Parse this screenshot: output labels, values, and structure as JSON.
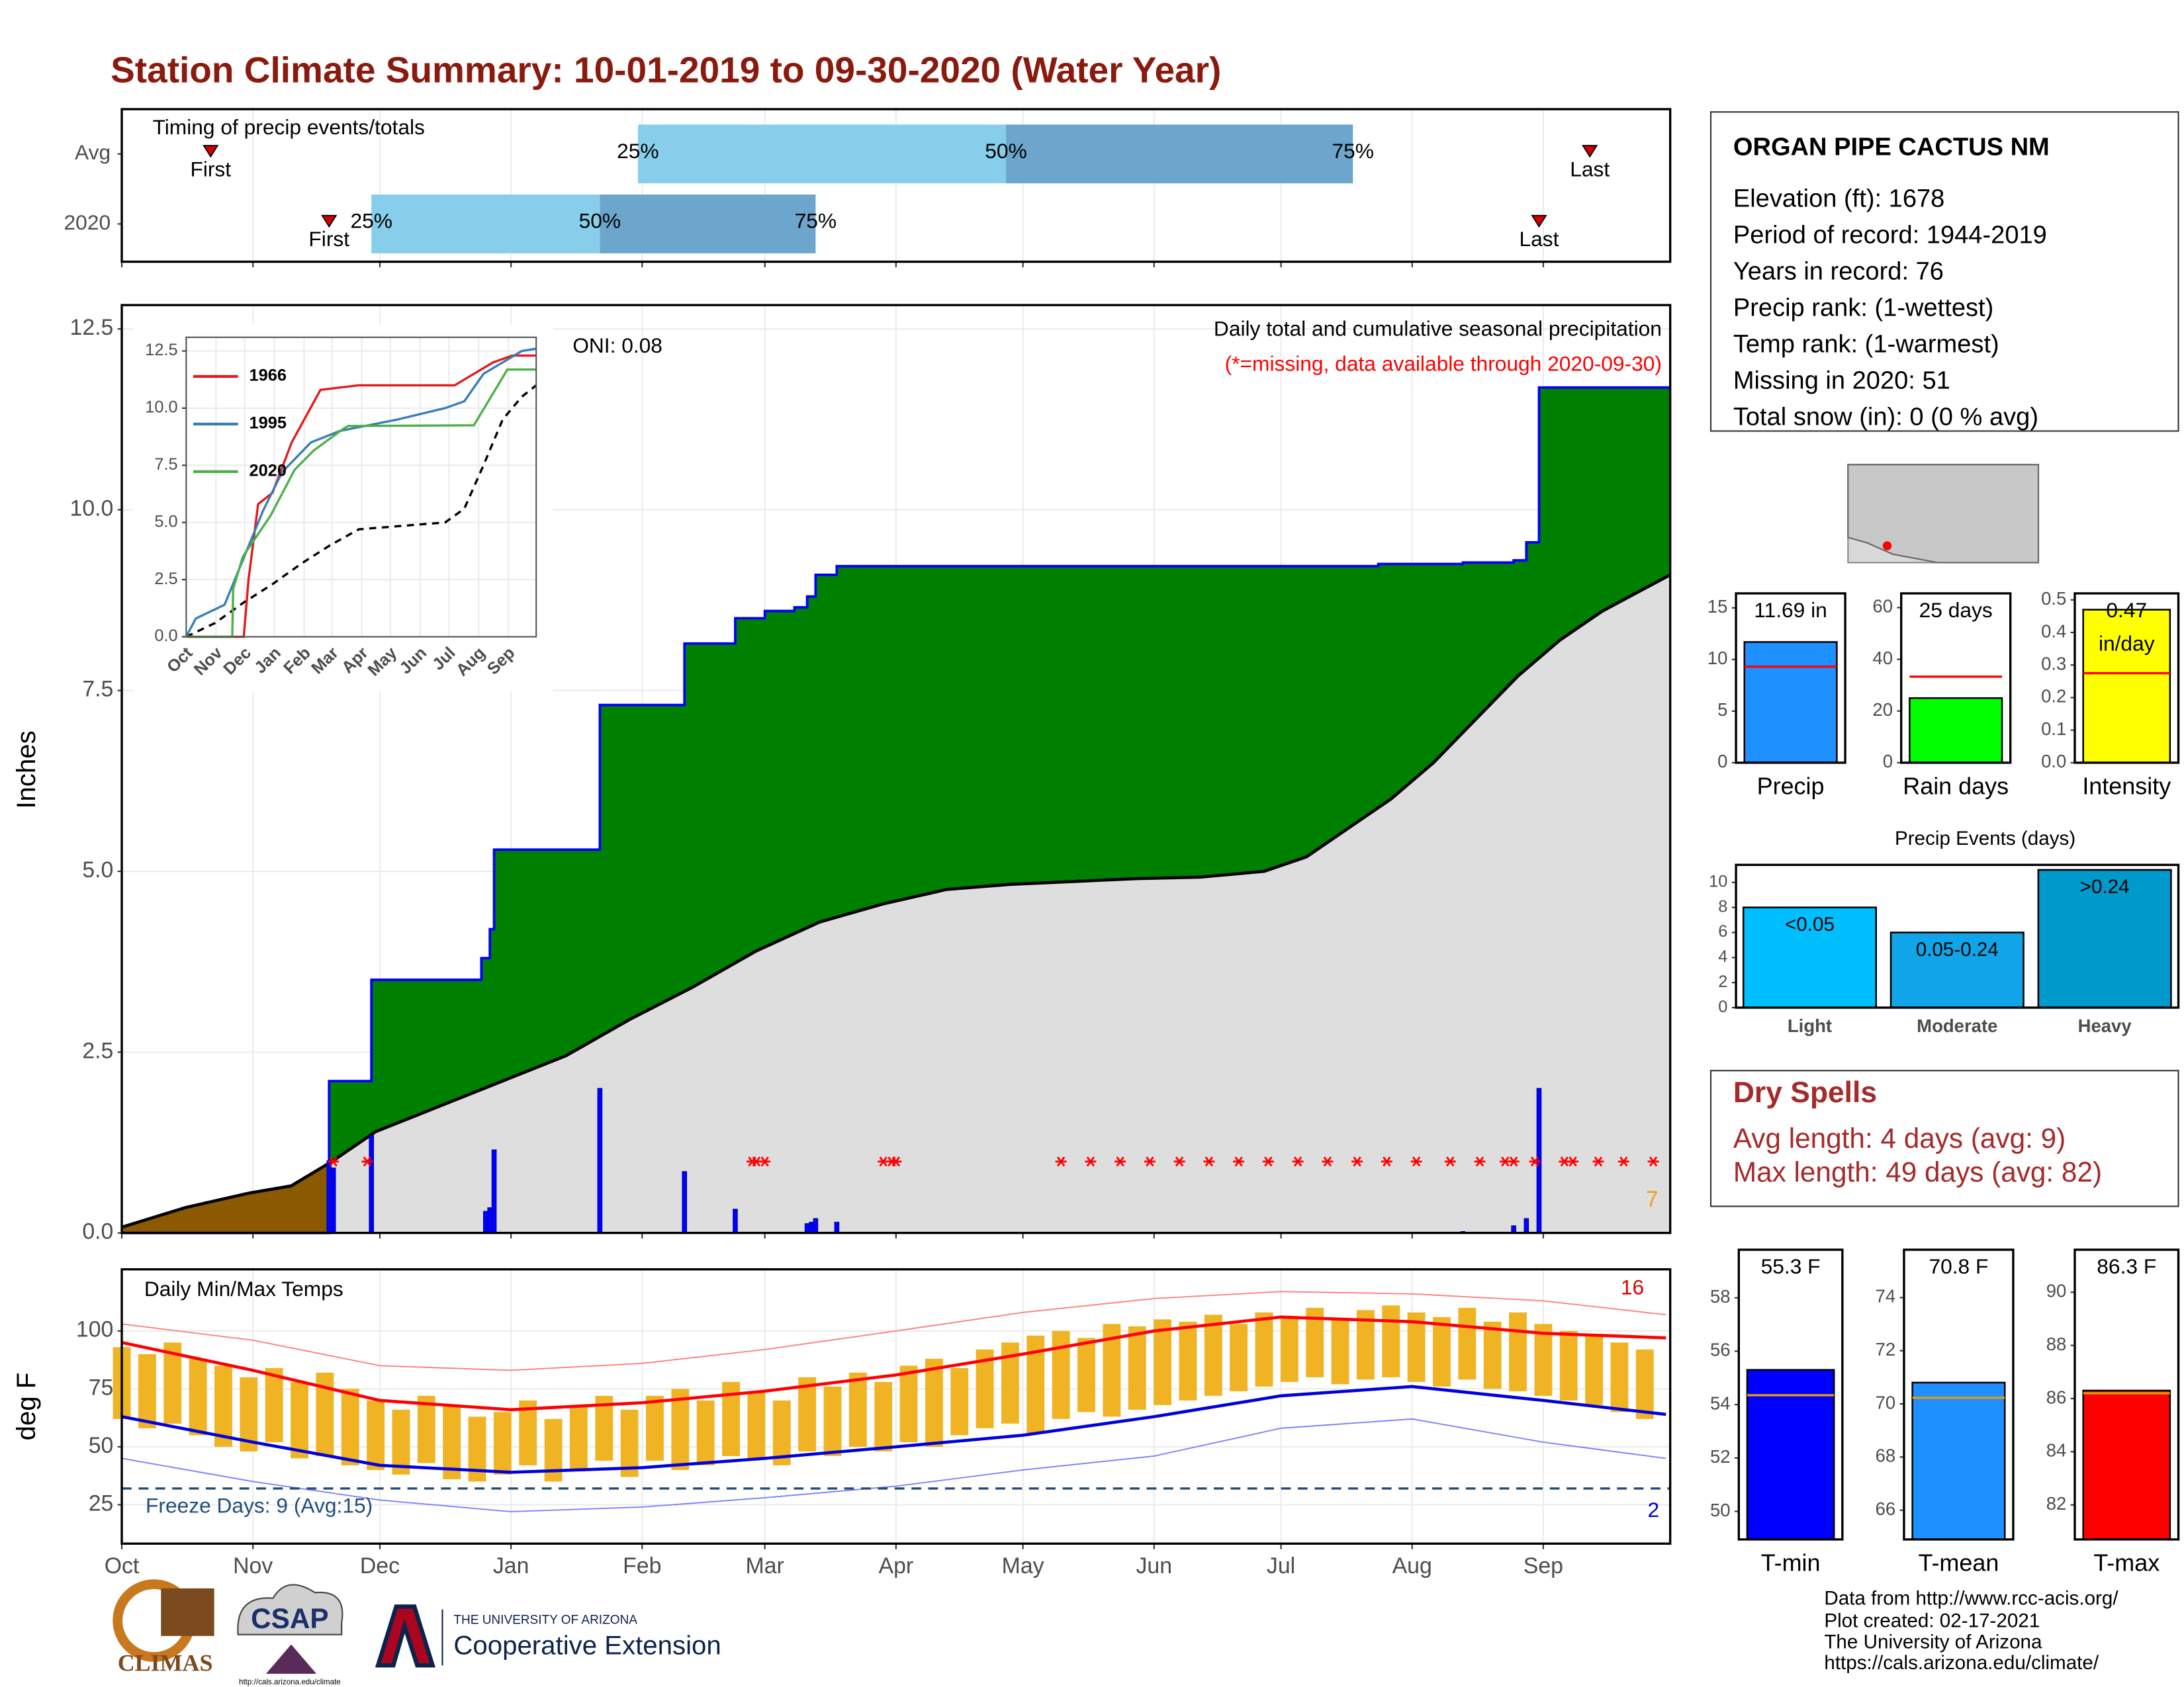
{
  "title": "Station Climate Summary: 10-01-2019 to 09-30-2020 (Water Year)",
  "station": {
    "name": "ORGAN PIPE CACTUS NM",
    "lines": [
      "Elevation (ft): 1678",
      "Period of record: 1944-2019",
      "Years in record: 76",
      "Precip rank:  (1-wettest)",
      "Temp rank:  (1-warmest)",
      "Missing in 2020: 51",
      "Total snow (in): 0 (0 % avg)"
    ]
  },
  "dry_spells": {
    "title": "Dry Spells",
    "lines": [
      "Avg length: 4 days (avg: 9)",
      "Max length: 49 days (avg: 82)"
    ]
  },
  "footer": [
    "Data from http://www.rcc-acis.org/",
    "Plot created: 02-17-2021",
    "The University of Arizona",
    "https://cals.arizona.edu/climate/"
  ],
  "logos": {
    "climas": "CLIMAS",
    "csap": "CSAP",
    "csap_url": "http://cals.arizona.edu/climate",
    "ua": "THE UNIVERSITY OF ARIZONA",
    "extension": "Cooperative Extension"
  },
  "chart_data": [
    {
      "type": "timing",
      "label": "Timing of precip events/totals",
      "xlim": [
        0,
        366
      ],
      "xticks": [
        0,
        31,
        61,
        92,
        123,
        152,
        183,
        213,
        244,
        274,
        305,
        336
      ],
      "grid": true,
      "labels": {
        "first": "First",
        "q25": "25%",
        "q50": "50%",
        "q75": "75%",
        "last": "Last"
      },
      "rows": [
        {
          "name": "Avg",
          "first": 21,
          "q25": 122,
          "q50": 209,
          "q75": 291,
          "last": 347
        },
        {
          "name": "2020",
          "first": 49,
          "q25": 59,
          "q50": 113,
          "q75": 164,
          "last": 335
        }
      ],
      "colors": {
        "lower": "#87ceeb",
        "upper": "#6ca6cd",
        "marker": "#d00000"
      }
    },
    {
      "type": "precip",
      "ylabel": "Inches",
      "oni": "ONI: 0.08",
      "caption": "Daily total and cumulative seasonal precipitation",
      "missing_note": "(*=missing, data available through 2020-09-30)",
      "count": "7",
      "xlim": [
        0,
        366
      ],
      "ylim": [
        0,
        12.83
      ],
      "xticks": [
        0,
        31,
        61,
        92,
        123,
        152,
        183,
        213,
        244,
        274,
        305,
        336
      ],
      "yticks": [
        {
          "value": 0,
          "label": "0.0"
        },
        2.5,
        {
          "value": 5,
          "label": "5.0"
        },
        7.5,
        {
          "value": 10,
          "label": "10.0"
        },
        12.5
      ],
      "grid": true,
      "cumulative": {
        "color": "#0000ff",
        "x": [
          0,
          49,
          49,
          59,
          59,
          85,
          85,
          87,
          87,
          88,
          88,
          113,
          113,
          133,
          133,
          145,
          145,
          152,
          152,
          159,
          159,
          162,
          162,
          164,
          164,
          169,
          169,
          297,
          297,
          317,
          317,
          329,
          329,
          332,
          332,
          335,
          335,
          366
        ],
        "values": [
          0,
          0,
          2.1,
          2.1,
          3.5,
          3.5,
          3.8,
          3.8,
          4.2,
          4.2,
          5.3,
          5.3,
          7.3,
          7.3,
          8.15,
          8.15,
          8.5,
          8.5,
          8.6,
          8.6,
          8.65,
          8.65,
          8.8,
          8.8,
          9.1,
          9.1,
          9.22,
          9.22,
          9.25,
          9.25,
          9.27,
          9.27,
          9.3,
          9.3,
          9.55,
          9.55,
          11.69,
          11.69
        ]
      },
      "average": {
        "color": "#000000",
        "x": [
          0,
          15,
          30,
          40,
          50,
          60,
          75,
          90,
          105,
          120,
          135,
          150,
          165,
          180,
          195,
          210,
          225,
          240,
          255,
          270,
          280,
          290,
          300,
          310,
          320,
          330,
          340,
          350,
          366
        ],
        "values": [
          0.08,
          0.35,
          0.55,
          0.65,
          1.0,
          1.4,
          1.75,
          2.1,
          2.45,
          2.95,
          3.4,
          3.9,
          4.3,
          4.55,
          4.75,
          4.82,
          4.86,
          4.9,
          4.92,
          5.0,
          5.2,
          5.6,
          6.0,
          6.5,
          7.1,
          7.7,
          8.2,
          8.6,
          9.1
        ]
      },
      "daily": {
        "color": "#0000ff",
        "x": [
          49,
          50,
          59,
          86,
          87,
          88,
          113,
          133,
          145,
          162,
          163,
          164,
          169,
          317,
          329,
          332,
          335
        ],
        "values": [
          1.0,
          0.9,
          1.35,
          0.3,
          0.35,
          1.15,
          2.0,
          0.85,
          0.33,
          0.13,
          0.15,
          0.2,
          0.15,
          0.02,
          0.1,
          0.2,
          2.0
        ]
      },
      "missing_x": [
        50,
        58,
        149,
        150,
        152,
        180,
        182,
        183,
        222,
        229,
        236,
        243,
        250,
        257,
        264,
        271,
        278,
        285,
        292,
        299,
        306,
        314,
        321,
        327,
        329,
        334,
        341,
        343,
        349,
        355,
        362
      ],
      "missing_color": "#ff0000",
      "fills": {
        "above": "#008000",
        "below": "#8b5a00",
        "base": "#dedede"
      }
    },
    {
      "type": "line",
      "xlim": [
        0,
        365
      ],
      "ylim": [
        0,
        13.1
      ],
      "yticks": [
        {
          "value": 0,
          "label": "0.0"
        },
        2.5,
        {
          "value": 5,
          "label": "5.0"
        },
        7.5,
        {
          "value": 10,
          "label": "10.0"
        },
        12.5
      ],
      "grid": true,
      "xticks": [
        {
          "value": 0,
          "label": "Oct"
        },
        {
          "value": 31,
          "label": "Nov"
        },
        {
          "value": 61,
          "label": "Dec"
        },
        {
          "value": 92,
          "label": "Jan"
        },
        {
          "value": 123,
          "label": "Feb"
        },
        {
          "value": 152,
          "label": "Mar"
        },
        {
          "value": 183,
          "label": "Apr"
        },
        {
          "value": 213,
          "label": "May"
        },
        {
          "value": 244,
          "label": "Jun"
        },
        {
          "value": 274,
          "label": "Jul"
        },
        {
          "value": 305,
          "label": "Aug"
        },
        {
          "value": 336,
          "label": "Sep"
        }
      ],
      "series": [
        {
          "name": "1966",
          "color": "#e41a1c",
          "x": [
            0,
            60,
            65,
            75,
            90,
            110,
            140,
            180,
            240,
            280,
            300,
            320,
            340,
            365
          ],
          "values": [
            0,
            0,
            2.5,
            5.8,
            6.3,
            8.5,
            10.8,
            11,
            11,
            11,
            11.5,
            12,
            12.3,
            12.3
          ]
        },
        {
          "name": "1995",
          "color": "#377eb8",
          "x": [
            0,
            10,
            40,
            80,
            100,
            130,
            160,
            220,
            270,
            290,
            310,
            330,
            350,
            365
          ],
          "values": [
            0,
            0.8,
            1.4,
            5.5,
            7.2,
            8.5,
            9.0,
            9.5,
            10,
            10.3,
            11.5,
            12,
            12.5,
            12.6
          ]
        },
        {
          "name": "2020",
          "color": "#4daf4a",
          "x": [
            0,
            48,
            49,
            59,
            88,
            113,
            133,
            164,
            169,
            300,
            335,
            365
          ],
          "values": [
            0,
            0,
            2.1,
            3.5,
            5.3,
            7.3,
            8.15,
            9.1,
            9.22,
            9.25,
            11.69,
            11.69
          ]
        }
      ],
      "average": {
        "color": "#000000",
        "x": [
          0,
          30,
          60,
          90,
          120,
          150,
          180,
          210,
          240,
          270,
          290,
          310,
          330,
          350,
          365
        ],
        "values": [
          0,
          0.6,
          1.5,
          2.3,
          3.2,
          4.0,
          4.7,
          4.8,
          4.9,
          5.0,
          5.6,
          7.5,
          9.5,
          10.5,
          11.0
        ]
      }
    },
    {
      "type": "temperature",
      "title": "Daily Min/Max Temps",
      "ylabel": "deg F",
      "freeze_note": "Freeze Days: 9 (Avg:15)",
      "record_high_count": "16",
      "record_low_count": "2",
      "xlim": [
        0,
        366
      ],
      "ylim": [
        8.2,
        126.6
      ],
      "yticks": [
        25,
        50,
        75,
        100
      ],
      "grid": true,
      "freeze": 32,
      "freeze_color": "#1f4e79",
      "xticks": [
        {
          "value": 0,
          "label": "Oct"
        },
        {
          "value": 31,
          "label": "Nov"
        },
        {
          "value": 61,
          "label": "Dec"
        },
        {
          "value": 92,
          "label": "Jan"
        },
        {
          "value": 123,
          "label": "Feb"
        },
        {
          "value": 152,
          "label": "Mar"
        },
        {
          "value": 183,
          "label": "Apr"
        },
        {
          "value": 213,
          "label": "May"
        },
        {
          "value": 244,
          "label": "Jun"
        },
        {
          "value": 274,
          "label": "Jul"
        },
        {
          "value": 305,
          "label": "Aug"
        },
        {
          "value": 336,
          "label": "Sep"
        }
      ],
      "bar_color": "#f0b323",
      "x": [
        0,
        6,
        12,
        18,
        24,
        30,
        36,
        42,
        48,
        54,
        60,
        66,
        72,
        78,
        84,
        90,
        96,
        102,
        108,
        114,
        120,
        126,
        132,
        138,
        144,
        150,
        156,
        162,
        168,
        174,
        180,
        186,
        192,
        198,
        204,
        210,
        216,
        222,
        228,
        234,
        240,
        246,
        252,
        258,
        264,
        270,
        276,
        282,
        288,
        294,
        300,
        306,
        312,
        318,
        324,
        330,
        336,
        342,
        348,
        354,
        360
      ],
      "high": [
        93,
        90,
        95,
        88,
        85,
        80,
        84,
        78,
        82,
        75,
        70,
        66,
        72,
        68,
        63,
        65,
        70,
        62,
        68,
        72,
        66,
        72,
        75,
        70,
        78,
        74,
        70,
        80,
        76,
        82,
        78,
        85,
        88,
        84,
        92,
        95,
        98,
        100,
        97,
        103,
        102,
        105,
        104,
        107,
        103,
        108,
        106,
        110,
        105,
        109,
        111,
        108,
        106,
        110,
        104,
        108,
        103,
        100,
        98,
        95,
        92
      ],
      "low": [
        62,
        58,
        60,
        55,
        50,
        48,
        52,
        45,
        46,
        42,
        40,
        38,
        43,
        36,
        35,
        38,
        42,
        35,
        40,
        44,
        37,
        44,
        40,
        42,
        46,
        45,
        42,
        48,
        46,
        50,
        48,
        52,
        50,
        55,
        58,
        60,
        56,
        62,
        65,
        63,
        66,
        68,
        70,
        72,
        74,
        76,
        78,
        80,
        77,
        79,
        80,
        78,
        76,
        79,
        75,
        74,
        72,
        70,
        68,
        65,
        62
      ],
      "lines": [
        {
          "style": "record",
          "color": "#ff8080",
          "x": [
            0,
            31,
            61,
            92,
            123,
            152,
            183,
            213,
            244,
            274,
            305,
            336,
            365
          ],
          "values": [
            103,
            96,
            85,
            83,
            86,
            92,
            100,
            108,
            114,
            117,
            116,
            113,
            107
          ]
        },
        {
          "style": "record",
          "color": "#8080ff",
          "x": [
            0,
            31,
            61,
            92,
            123,
            152,
            183,
            213,
            244,
            274,
            305,
            336,
            365
          ],
          "values": [
            45,
            35,
            27,
            22,
            24,
            28,
            33,
            40,
            46,
            58,
            62,
            52,
            45
          ]
        },
        {
          "style": "avg",
          "color": "#ff0000",
          "x": [
            0,
            31,
            61,
            92,
            123,
            152,
            183,
            213,
            244,
            274,
            305,
            336,
            365
          ],
          "values": [
            95,
            83,
            70,
            66,
            69,
            74,
            81,
            90,
            100,
            106,
            104,
            99,
            97
          ]
        },
        {
          "style": "avg",
          "color": "#0000dd",
          "x": [
            0,
            31,
            61,
            92,
            123,
            152,
            183,
            213,
            244,
            274,
            305,
            336,
            365
          ],
          "values": [
            63,
            52,
            42,
            39,
            41,
            45,
            50,
            55,
            63,
            72,
            76,
            70,
            64
          ]
        }
      ]
    },
    {
      "type": "bar",
      "categories": [
        "Precip"
      ],
      "values": [
        11.69
      ],
      "value_labels": [
        "11.69 in"
      ],
      "color": "#1e90ff",
      "avg": 9.3,
      "avg_color": "#ff0000",
      "ylim": [
        0,
        16.4
      ],
      "yticks": [
        0,
        5,
        10,
        15
      ]
    },
    {
      "type": "bar",
      "categories": [
        "Rain days"
      ],
      "values": [
        25
      ],
      "value_labels": [
        "25 days"
      ],
      "color": "#00ff00",
      "avg": 33.3,
      "avg_color": "#ff0000",
      "ylim": [
        0,
        65.5
      ],
      "yticks": [
        0,
        20,
        40,
        60
      ]
    },
    {
      "type": "bar",
      "categories": [
        "Intensity"
      ],
      "values": [
        0.47
      ],
      "value_labels": [
        "0.47"
      ],
      "unit": "in/day",
      "color": "#ffff00",
      "avg": 0.275,
      "avg_color": "#ff0000",
      "ylim": [
        0,
        0.52
      ],
      "yticks": [
        {
          "value": 0,
          "label": "0.0"
        },
        0.1,
        0.2,
        0.3,
        0.4,
        0.5
      ]
    },
    {
      "type": "events",
      "title": "Precip Events (days)",
      "categories": [
        "Light",
        "Moderate",
        "Heavy"
      ],
      "values": [
        8,
        6,
        11
      ],
      "bin_labels": [
        "<0.05",
        "0.05-0.24",
        ">0.24"
      ],
      "colors": [
        "#00bfff",
        "#10a5e8",
        "#0099cc"
      ],
      "ylim": [
        0,
        11.4
      ],
      "yticks": [
        0,
        2,
        4,
        6,
        8,
        10
      ]
    },
    {
      "type": "bar",
      "categories": [
        "T-min"
      ],
      "values": [
        55.3
      ],
      "value_labels": [
        "55.3 F"
      ],
      "color": "#0000ff",
      "avg": 54.35,
      "avg_color": "#e69b00",
      "ylim": [
        48.95,
        59.8
      ],
      "yticks": [
        50,
        52,
        54,
        56,
        58
      ]
    },
    {
      "type": "bar",
      "categories": [
        "T-mean"
      ],
      "values": [
        70.8
      ],
      "value_labels": [
        "70.8 F"
      ],
      "color": "#1e90ff",
      "avg": 70.23,
      "avg_color": "#e69b00",
      "ylim": [
        64.9,
        75.8
      ],
      "yticks": [
        66,
        68,
        70,
        72,
        74
      ]
    },
    {
      "type": "bar",
      "categories": [
        "T-max"
      ],
      "values": [
        86.3
      ],
      "value_labels": [
        "86.3 F"
      ],
      "color": "#ff0000",
      "avg": 86.2,
      "avg_color": "#e69b00",
      "ylim": [
        80.7,
        91.6
      ],
      "yticks": [
        82,
        84,
        86,
        88,
        90
      ]
    }
  ]
}
